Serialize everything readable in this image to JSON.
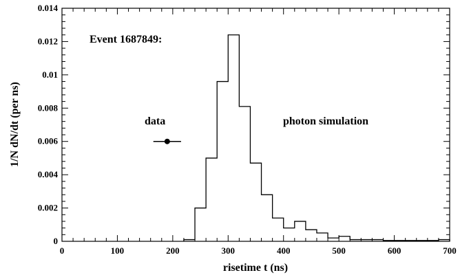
{
  "chart_data": {
    "type": "histogram",
    "title": "",
    "xlabel": "risetime t (ns)",
    "ylabel": "1/N dN/dt (per ns)",
    "xlim": [
      0,
      700
    ],
    "ylim": [
      0,
      0.014
    ],
    "x_ticks": [
      "0",
      "100",
      "200",
      "300",
      "400",
      "500",
      "600",
      "700"
    ],
    "y_ticks": [
      "0",
      "0.002",
      "0.004",
      "0.006",
      "0.008",
      "0.01",
      "0.012",
      "0.014"
    ],
    "grid": false,
    "annotations": {
      "event": "Event 1687849:",
      "data_label": "data",
      "simulation_label": "photon simulation"
    },
    "series": [
      {
        "name": "photon simulation",
        "style": "step",
        "bin_width": 20,
        "bin_edges_start": 220,
        "values": [
          0.0001,
          0.002,
          0.005,
          0.0096,
          0.0124,
          0.0081,
          0.0047,
          0.0028,
          0.0014,
          0.0008,
          0.0012,
          0.0007,
          0.0005,
          0.0002,
          0.0003,
          0.0001,
          0.0001,
          0.0001,
          5e-05,
          5e-05,
          5e-05,
          5e-05,
          5e-05,
          0.0001
        ]
      },
      {
        "name": "data",
        "style": "point",
        "x": 190,
        "y": 0.006,
        "x_err": 25
      }
    ]
  }
}
